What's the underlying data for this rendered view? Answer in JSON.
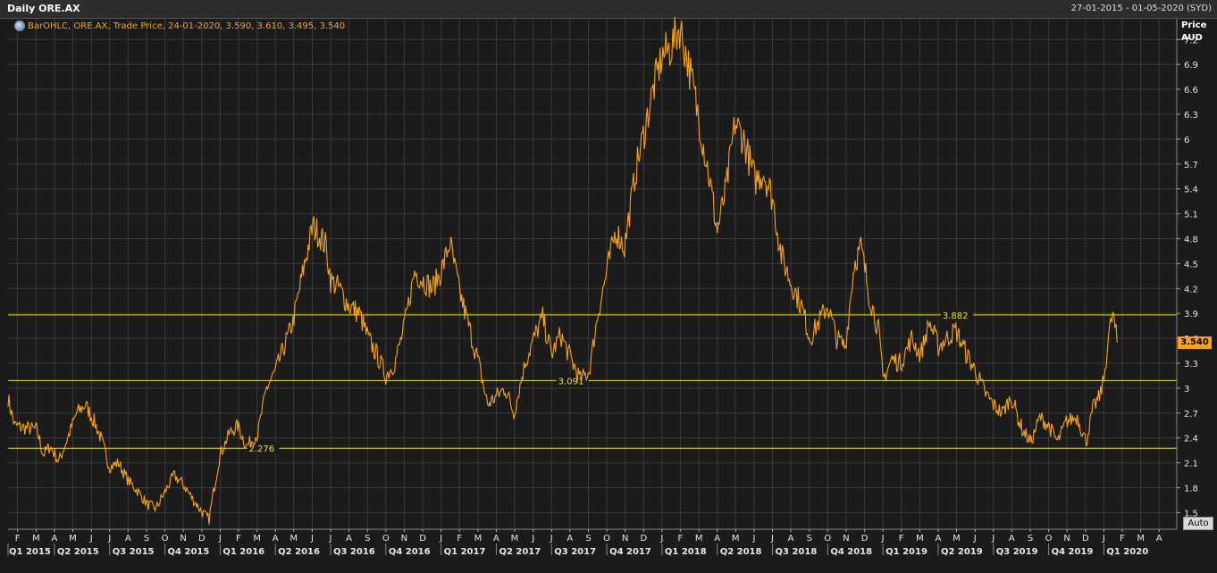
{
  "header": {
    "title": "Daily ORE.AX",
    "date_range": "27-01-2015 - 01-05-2020 (SYD)"
  },
  "legend": {
    "text": "BarOHLC, ORE.AX, Trade Price,  24-01-2020, 3.590, 3.610, 3.495, 3.540"
  },
  "axis": {
    "title_line1": "Price",
    "title_line2": "AUD",
    "auto_label": "Auto",
    "last_value_label": "3.540"
  },
  "colors": {
    "price": "#f7a21a",
    "level": "#e6e619",
    "grid": "#3a3a3a"
  },
  "chart_data": {
    "type": "line",
    "title": "Daily ORE.AX",
    "ylabel": "Price AUD",
    "ylim": [
      1.3,
      7.45
    ],
    "y_ticks": [
      1.5,
      1.8,
      2.1,
      2.4,
      2.7,
      3,
      3.3,
      3.6,
      3.9,
      4.2,
      4.5,
      4.8,
      5.1,
      5.4,
      5.7,
      6,
      6.3,
      6.6,
      6.9,
      7.2
    ],
    "y_tick_labels": [
      "1.5",
      "1.8",
      "2.1",
      "2.4",
      "2.7",
      "3",
      "3.3",
      "3.6",
      "3.9",
      "4.2",
      "4.5",
      "4.8",
      "5.1",
      "5.4",
      "5.7",
      "6",
      "6.3",
      "6.6",
      "6.9",
      "7.2"
    ],
    "xlim": [
      2015.04,
      2020.33
    ],
    "month_ticks": [
      {
        "x": 2015.083,
        "label": "F"
      },
      {
        "x": 2015.167,
        "label": "M"
      },
      {
        "x": 2015.25,
        "label": "A"
      },
      {
        "x": 2015.333,
        "label": "M"
      },
      {
        "x": 2015.417,
        "label": "J"
      },
      {
        "x": 2015.5,
        "label": "J"
      },
      {
        "x": 2015.583,
        "label": "A"
      },
      {
        "x": 2015.667,
        "label": "S"
      },
      {
        "x": 2015.75,
        "label": "O"
      },
      {
        "x": 2015.833,
        "label": "N"
      },
      {
        "x": 2015.917,
        "label": "D"
      },
      {
        "x": 2016.0,
        "label": "J"
      },
      {
        "x": 2016.083,
        "label": "F"
      },
      {
        "x": 2016.167,
        "label": "M"
      },
      {
        "x": 2016.25,
        "label": "A"
      },
      {
        "x": 2016.333,
        "label": "M"
      },
      {
        "x": 2016.417,
        "label": "J"
      },
      {
        "x": 2016.5,
        "label": "J"
      },
      {
        "x": 2016.583,
        "label": "A"
      },
      {
        "x": 2016.667,
        "label": "S"
      },
      {
        "x": 2016.75,
        "label": "O"
      },
      {
        "x": 2016.833,
        "label": "N"
      },
      {
        "x": 2016.917,
        "label": "D"
      },
      {
        "x": 2017.0,
        "label": "J"
      },
      {
        "x": 2017.083,
        "label": "F"
      },
      {
        "x": 2017.167,
        "label": "M"
      },
      {
        "x": 2017.25,
        "label": "A"
      },
      {
        "x": 2017.333,
        "label": "M"
      },
      {
        "x": 2017.417,
        "label": "J"
      },
      {
        "x": 2017.5,
        "label": "J"
      },
      {
        "x": 2017.583,
        "label": "A"
      },
      {
        "x": 2017.667,
        "label": "S"
      },
      {
        "x": 2017.75,
        "label": "O"
      },
      {
        "x": 2017.833,
        "label": "N"
      },
      {
        "x": 2017.917,
        "label": "D"
      },
      {
        "x": 2018.0,
        "label": "J"
      },
      {
        "x": 2018.083,
        "label": "F"
      },
      {
        "x": 2018.167,
        "label": "M"
      },
      {
        "x": 2018.25,
        "label": "A"
      },
      {
        "x": 2018.333,
        "label": "M"
      },
      {
        "x": 2018.417,
        "label": "J"
      },
      {
        "x": 2018.5,
        "label": "J"
      },
      {
        "x": 2018.583,
        "label": "A"
      },
      {
        "x": 2018.667,
        "label": "S"
      },
      {
        "x": 2018.75,
        "label": "O"
      },
      {
        "x": 2018.833,
        "label": "N"
      },
      {
        "x": 2018.917,
        "label": "D"
      },
      {
        "x": 2019.0,
        "label": "J"
      },
      {
        "x": 2019.083,
        "label": "F"
      },
      {
        "x": 2019.167,
        "label": "M"
      },
      {
        "x": 2019.25,
        "label": "A"
      },
      {
        "x": 2019.333,
        "label": "M"
      },
      {
        "x": 2019.417,
        "label": "J"
      },
      {
        "x": 2019.5,
        "label": "J"
      },
      {
        "x": 2019.583,
        "label": "A"
      },
      {
        "x": 2019.667,
        "label": "S"
      },
      {
        "x": 2019.75,
        "label": "O"
      },
      {
        "x": 2019.833,
        "label": "N"
      },
      {
        "x": 2019.917,
        "label": "D"
      },
      {
        "x": 2020.0,
        "label": "J"
      },
      {
        "x": 2020.083,
        "label": "F"
      },
      {
        "x": 2020.167,
        "label": "M"
      },
      {
        "x": 2020.25,
        "label": "A"
      }
    ],
    "quarter_ticks": [
      {
        "x": 2015.0,
        "label": "Q1 2015"
      },
      {
        "x": 2015.25,
        "label": "Q2 2015"
      },
      {
        "x": 2015.5,
        "label": "Q3 2015"
      },
      {
        "x": 2015.75,
        "label": "Q4 2015"
      },
      {
        "x": 2016.0,
        "label": "Q1 2016"
      },
      {
        "x": 2016.25,
        "label": "Q2 2016"
      },
      {
        "x": 2016.5,
        "label": "Q3 2016"
      },
      {
        "x": 2016.75,
        "label": "Q4 2016"
      },
      {
        "x": 2017.0,
        "label": "Q1 2017"
      },
      {
        "x": 2017.25,
        "label": "Q2 2017"
      },
      {
        "x": 2017.5,
        "label": "Q3 2017"
      },
      {
        "x": 2017.75,
        "label": "Q4 2017"
      },
      {
        "x": 2018.0,
        "label": "Q1 2018"
      },
      {
        "x": 2018.25,
        "label": "Q2 2018"
      },
      {
        "x": 2018.5,
        "label": "Q3 2018"
      },
      {
        "x": 2018.75,
        "label": "Q4 2018"
      },
      {
        "x": 2019.0,
        "label": "Q1 2019"
      },
      {
        "x": 2019.25,
        "label": "Q2 2019"
      },
      {
        "x": 2019.5,
        "label": "Q3 2019"
      },
      {
        "x": 2019.75,
        "label": "Q4 2019"
      },
      {
        "x": 2020.0,
        "label": "Q1 2020"
      }
    ],
    "levels": [
      {
        "value": 3.882,
        "label": "3.882",
        "label_x": 2019.27
      },
      {
        "value": 3.091,
        "label": "3.091",
        "label_x": 2017.53
      },
      {
        "value": 2.276,
        "label": "2.276",
        "label_x": 2016.13
      }
    ],
    "series": [
      {
        "values": [
          [
            2015.04,
            2.88
          ],
          [
            2015.07,
            2.55
          ],
          [
            2015.12,
            2.52
          ],
          [
            2015.17,
            2.5
          ],
          [
            2015.2,
            2.2
          ],
          [
            2015.23,
            2.3
          ],
          [
            2015.27,
            2.12
          ],
          [
            2015.31,
            2.4
          ],
          [
            2015.35,
            2.7
          ],
          [
            2015.39,
            2.8
          ],
          [
            2015.43,
            2.6
          ],
          [
            2015.46,
            2.4
          ],
          [
            2015.5,
            2.05
          ],
          [
            2015.54,
            2.1
          ],
          [
            2015.58,
            1.9
          ],
          [
            2015.63,
            1.75
          ],
          [
            2015.67,
            1.6
          ],
          [
            2015.71,
            1.55
          ],
          [
            2015.75,
            1.75
          ],
          [
            2015.79,
            1.95
          ],
          [
            2015.83,
            1.85
          ],
          [
            2015.88,
            1.65
          ],
          [
            2015.92,
            1.5
          ],
          [
            2015.95,
            1.42
          ],
          [
            2015.97,
            1.75
          ],
          [
            2016.0,
            2.2
          ],
          [
            2016.04,
            2.45
          ],
          [
            2016.08,
            2.55
          ],
          [
            2016.12,
            2.3
          ],
          [
            2016.17,
            2.45
          ],
          [
            2016.21,
            3.0
          ],
          [
            2016.25,
            3.2
          ],
          [
            2016.29,
            3.5
          ],
          [
            2016.33,
            3.8
          ],
          [
            2016.36,
            4.2
          ],
          [
            2016.39,
            4.6
          ],
          [
            2016.42,
            4.95
          ],
          [
            2016.45,
            4.85
          ],
          [
            2016.48,
            4.7
          ],
          [
            2016.5,
            4.3
          ],
          [
            2016.54,
            4.2
          ],
          [
            2016.58,
            4.0
          ],
          [
            2016.63,
            3.9
          ],
          [
            2016.67,
            3.6
          ],
          [
            2016.71,
            3.4
          ],
          [
            2016.75,
            3.15
          ],
          [
            2016.79,
            3.3
          ],
          [
            2016.83,
            3.7
          ],
          [
            2016.88,
            4.4
          ],
          [
            2016.92,
            4.3
          ],
          [
            2016.96,
            4.2
          ],
          [
            2017.0,
            4.4
          ],
          [
            2017.04,
            4.75
          ],
          [
            2017.08,
            4.2
          ],
          [
            2017.12,
            3.8
          ],
          [
            2017.17,
            3.3
          ],
          [
            2017.21,
            2.8
          ],
          [
            2017.25,
            2.9
          ],
          [
            2017.29,
            3.0
          ],
          [
            2017.33,
            2.7
          ],
          [
            2017.38,
            3.3
          ],
          [
            2017.42,
            3.6
          ],
          [
            2017.46,
            3.85
          ],
          [
            2017.5,
            3.4
          ],
          [
            2017.54,
            3.65
          ],
          [
            2017.58,
            3.4
          ],
          [
            2017.63,
            3.1
          ],
          [
            2017.67,
            3.2
          ],
          [
            2017.71,
            3.9
          ],
          [
            2017.75,
            4.4
          ],
          [
            2017.79,
            4.9
          ],
          [
            2017.83,
            4.7
          ],
          [
            2017.88,
            5.6
          ],
          [
            2017.92,
            6.1
          ],
          [
            2017.96,
            6.6
          ],
          [
            2018.0,
            7.0
          ],
          [
            2018.04,
            7.1
          ],
          [
            2018.08,
            7.35
          ],
          [
            2018.12,
            6.9
          ],
          [
            2018.17,
            6.2
          ],
          [
            2018.21,
            5.6
          ],
          [
            2018.25,
            4.9
          ],
          [
            2018.29,
            5.4
          ],
          [
            2018.33,
            6.2
          ],
          [
            2018.37,
            6.0
          ],
          [
            2018.42,
            5.5
          ],
          [
            2018.46,
            5.6
          ],
          [
            2018.5,
            5.3
          ],
          [
            2018.54,
            4.6
          ],
          [
            2018.58,
            4.3
          ],
          [
            2018.63,
            4.0
          ],
          [
            2018.67,
            3.6
          ],
          [
            2018.71,
            3.8
          ],
          [
            2018.75,
            4.0
          ],
          [
            2018.79,
            3.6
          ],
          [
            2018.83,
            3.5
          ],
          [
            2018.87,
            4.5
          ],
          [
            2018.9,
            4.7
          ],
          [
            2018.94,
            4.1
          ],
          [
            2018.98,
            3.7
          ],
          [
            2019.0,
            3.1
          ],
          [
            2019.04,
            3.35
          ],
          [
            2019.08,
            3.3
          ],
          [
            2019.13,
            3.6
          ],
          [
            2019.17,
            3.4
          ],
          [
            2019.21,
            3.8
          ],
          [
            2019.25,
            3.5
          ],
          [
            2019.29,
            3.6
          ],
          [
            2019.33,
            3.7
          ],
          [
            2019.38,
            3.4
          ],
          [
            2019.42,
            3.2
          ],
          [
            2019.46,
            2.95
          ],
          [
            2019.5,
            2.8
          ],
          [
            2019.54,
            2.7
          ],
          [
            2019.58,
            2.9
          ],
          [
            2019.63,
            2.5
          ],
          [
            2019.67,
            2.35
          ],
          [
            2019.71,
            2.65
          ],
          [
            2019.75,
            2.55
          ],
          [
            2019.79,
            2.35
          ],
          [
            2019.83,
            2.6
          ],
          [
            2019.88,
            2.65
          ],
          [
            2019.92,
            2.35
          ],
          [
            2019.95,
            2.75
          ],
          [
            2019.98,
            2.9
          ],
          [
            2020.0,
            3.1
          ],
          [
            2020.02,
            3.6
          ],
          [
            2020.04,
            3.9
          ],
          [
            2020.06,
            3.55
          ]
        ]
      }
    ]
  }
}
